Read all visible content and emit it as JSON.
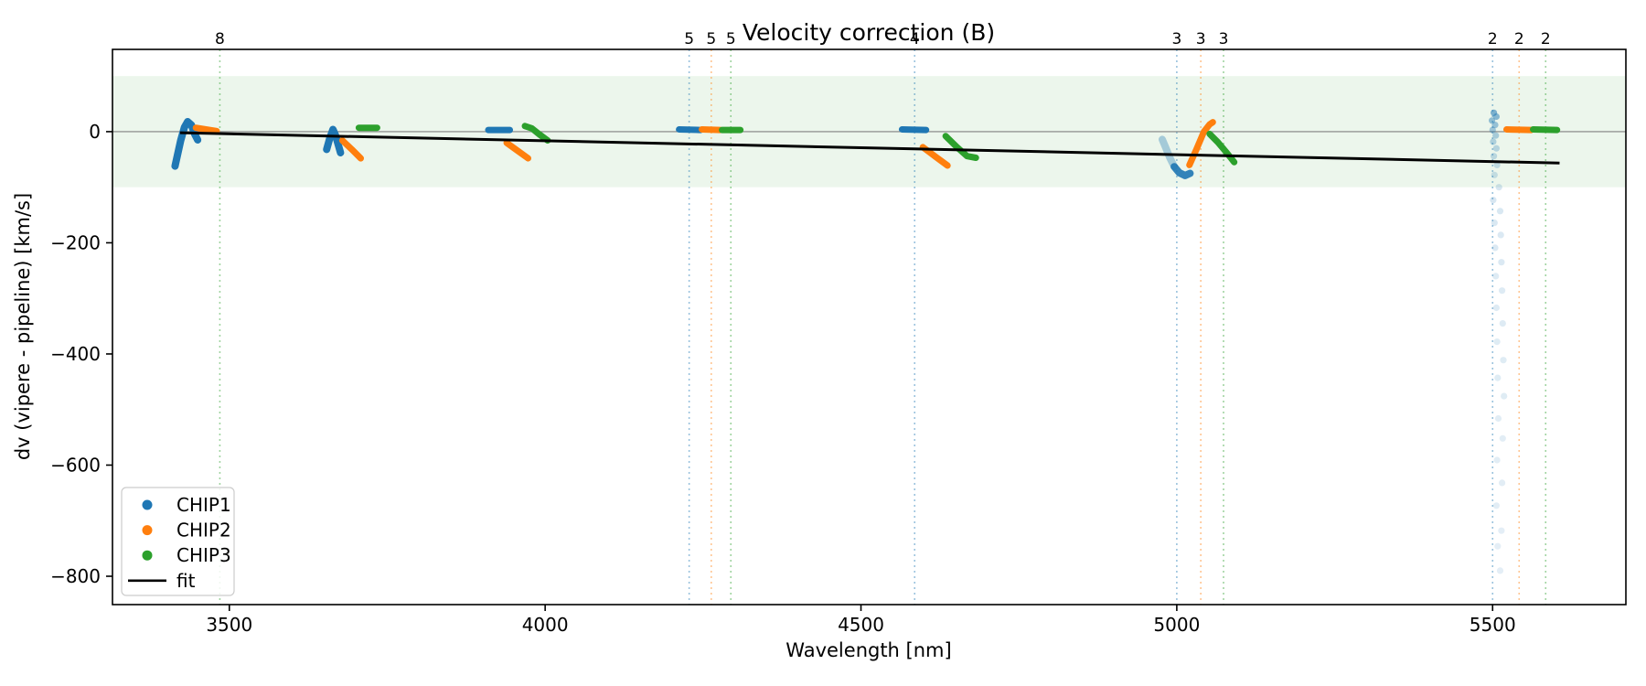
{
  "chart_data": {
    "type": "scatter",
    "title": "Velocity correction (B)",
    "xlabel": "Wavelength [nm]",
    "ylabel": "dv (vipere - pipeline) [km/s]",
    "xlim": [
      3315,
      5711
    ],
    "ylim": [
      -851,
      148
    ],
    "grid": false,
    "xticks": [
      3500,
      4000,
      4500,
      5000,
      5500
    ],
    "xtick_labels": [
      "3500",
      "4000",
      "4500",
      "5000",
      "5500"
    ],
    "yticks": [
      0,
      -200,
      -400,
      -600,
      -800
    ],
    "ytick_labels": [
      "0",
      "−200",
      "−400",
      "−600",
      "−800"
    ],
    "zero_line": {
      "y": 0,
      "color": "#808080"
    },
    "band": {
      "ymin": -100,
      "ymax": 100,
      "color": "#2ca02c",
      "alpha": 0.09
    },
    "fit_line": {
      "name": "fit",
      "color": "#000000",
      "x": [
        3422,
        5606
      ],
      "y": [
        -2,
        -56.5
      ]
    },
    "order_markers": [
      {
        "wavelength": 3485,
        "count": "8",
        "chip": "CHIP3"
      },
      {
        "wavelength": 4228,
        "count": "5",
        "chip": "CHIP1"
      },
      {
        "wavelength": 4263,
        "count": "5",
        "chip": "CHIP2"
      },
      {
        "wavelength": 4294,
        "count": "5",
        "chip": "CHIP3"
      },
      {
        "wavelength": 4585,
        "count": "4",
        "chip": "CHIP1"
      },
      {
        "wavelength": 5000,
        "count": "3",
        "chip": "CHIP1"
      },
      {
        "wavelength": 5038,
        "count": "3",
        "chip": "CHIP2"
      },
      {
        "wavelength": 5074,
        "count": "3",
        "chip": "CHIP3"
      },
      {
        "wavelength": 5500,
        "count": "2",
        "chip": "CHIP1"
      },
      {
        "wavelength": 5542,
        "count": "2",
        "chip": "CHIP2"
      },
      {
        "wavelength": 5584,
        "count": "2",
        "chip": "CHIP3"
      }
    ],
    "series": [
      {
        "name": "CHIP1",
        "color": "#1f77b4",
        "strokes": [
          {
            "points": [
              [
                3414,
                -62
              ],
              [
                3418,
                -42
              ],
              [
                3423,
                -16
              ],
              [
                3429,
                8
              ],
              [
                3434,
                18
              ],
              [
                3440,
                12
              ],
              [
                3445,
                -4
              ],
              [
                3450,
                -15
              ]
            ],
            "width": 8,
            "opacity": 1
          },
          {
            "points": [
              [
                3654,
                -32
              ],
              [
                3659,
                -12
              ],
              [
                3664,
                4
              ],
              [
                3668,
                -6
              ],
              [
                3672,
                -22
              ],
              [
                3676,
                -38
              ]
            ],
            "width": 8,
            "opacity": 1
          },
          {
            "points": [
              [
                3910,
                3
              ],
              [
                3944,
                3
              ]
            ],
            "width": 7,
            "opacity": 1
          },
          {
            "points": [
              [
                4212,
                4
              ],
              [
                4246,
                3
              ]
            ],
            "width": 7,
            "opacity": 1
          },
          {
            "points": [
              [
                4565,
                4
              ],
              [
                4603,
                3
              ]
            ],
            "width": 7,
            "opacity": 1
          },
          {
            "points": [
              [
                4977,
                -14
              ],
              [
                4983,
                -30
              ],
              [
                4989,
                -47
              ],
              [
                4996,
                -63
              ]
            ],
            "width": 8,
            "opacity": 0.35
          },
          {
            "points": [
              [
                4996,
                -63
              ],
              [
                5004,
                -74
              ],
              [
                5013,
                -79
              ],
              [
                5021,
                -75
              ]
            ],
            "width": 8,
            "opacity": 0.9
          }
        ],
        "dots": [
          [
            5502,
            34,
            0.55
          ],
          [
            5506,
            27,
            0.5
          ],
          [
            5499,
            20,
            0.45
          ],
          [
            5504,
            12,
            0.42
          ],
          [
            5500,
            3,
            0.38
          ],
          [
            5505,
            -7,
            0.34
          ],
          [
            5501,
            -18,
            0.3
          ],
          [
            5506,
            -30,
            0.27
          ],
          [
            5502,
            -44,
            0.24
          ],
          [
            5507,
            -60,
            0.22
          ],
          [
            5503,
            -78,
            0.2
          ],
          [
            5510,
            -100,
            0.18
          ],
          [
            5501,
            -123,
            0.18
          ],
          [
            5512,
            -143,
            0.17
          ],
          [
            5503,
            -164,
            0.17
          ],
          [
            5513,
            -186,
            0.16
          ],
          [
            5504,
            -209,
            0.16
          ],
          [
            5514,
            -235,
            0.16
          ],
          [
            5505,
            -260,
            0.15
          ],
          [
            5515,
            -286,
            0.15
          ],
          [
            5506,
            -317,
            0.15
          ],
          [
            5516,
            -345,
            0.15
          ],
          [
            5507,
            -378,
            0.14
          ],
          [
            5517,
            -411,
            0.14
          ],
          [
            5508,
            -443,
            0.14
          ],
          [
            5518,
            -476,
            0.14
          ],
          [
            5509,
            -516,
            0.13
          ],
          [
            5516,
            -552,
            0.13
          ],
          [
            5507,
            -591,
            0.13
          ],
          [
            5515,
            -632,
            0.13
          ],
          [
            5506,
            -673,
            0.13
          ],
          [
            5514,
            -718,
            0.12
          ],
          [
            5508,
            -746,
            0.12
          ],
          [
            5512,
            -790,
            0.12
          ]
        ]
      },
      {
        "name": "CHIP2",
        "color": "#ff7f0e",
        "strokes": [
          {
            "points": [
              [
                3447,
                7
              ],
              [
                3480,
                1
              ]
            ],
            "width": 7,
            "opacity": 1
          },
          {
            "points": [
              [
                3679,
                -16
              ],
              [
                3694,
                -32
              ],
              [
                3708,
                -48
              ]
            ],
            "width": 7,
            "opacity": 1
          },
          {
            "points": [
              [
                3939,
                -20
              ],
              [
                3956,
                -34
              ],
              [
                3973,
                -48
              ]
            ],
            "width": 7,
            "opacity": 1
          },
          {
            "points": [
              [
                4248,
                4
              ],
              [
                4277,
                3
              ]
            ],
            "width": 7,
            "opacity": 1
          },
          {
            "points": [
              [
                4598,
                -28
              ],
              [
                4618,
                -45
              ],
              [
                4637,
                -61
              ]
            ],
            "width": 7,
            "opacity": 1
          },
          {
            "points": [
              [
                5020,
                -60
              ],
              [
                5031,
                -32
              ],
              [
                5043,
                0
              ],
              [
                5052,
                13
              ],
              [
                5057,
                17
              ]
            ],
            "width": 7,
            "opacity": 1
          },
          {
            "points": [
              [
                5522,
                4
              ],
              [
                5561,
                3
              ]
            ],
            "width": 7,
            "opacity": 1
          }
        ],
        "dots": []
      },
      {
        "name": "CHIP3",
        "color": "#2ca02c",
        "strokes": [
          {
            "points": [
              [
                3705,
                7
              ],
              [
                3734,
                7
              ]
            ],
            "width": 7,
            "opacity": 1
          },
          {
            "points": [
              [
                3968,
                10
              ],
              [
                3979,
                6
              ],
              [
                3991,
                -5
              ],
              [
                4004,
                -16
              ]
            ],
            "width": 7,
            "opacity": 1
          },
          {
            "points": [
              [
                4280,
                3
              ],
              [
                4309,
                3
              ]
            ],
            "width": 7,
            "opacity": 1
          },
          {
            "points": [
              [
                4634,
                -8
              ],
              [
                4652,
                -28
              ],
              [
                4668,
                -44
              ],
              [
                4682,
                -47
              ]
            ],
            "width": 7,
            "opacity": 1
          },
          {
            "points": [
              [
                5052,
                -4
              ],
              [
                5065,
                -19
              ],
              [
                5079,
                -38
              ],
              [
                5091,
                -55
              ]
            ],
            "width": 7,
            "opacity": 1
          },
          {
            "points": [
              [
                5564,
                4
              ],
              [
                5602,
                3
              ]
            ],
            "width": 7,
            "opacity": 1
          }
        ],
        "dots": []
      }
    ],
    "legend": {
      "position": "lower left",
      "entries": [
        {
          "label": "CHIP1",
          "marker": "dot",
          "color": "#1f77b4"
        },
        {
          "label": "CHIP2",
          "marker": "dot",
          "color": "#ff7f0e"
        },
        {
          "label": "CHIP3",
          "marker": "dot",
          "color": "#2ca02c"
        },
        {
          "label": "fit",
          "marker": "line",
          "color": "#000000"
        }
      ]
    }
  }
}
